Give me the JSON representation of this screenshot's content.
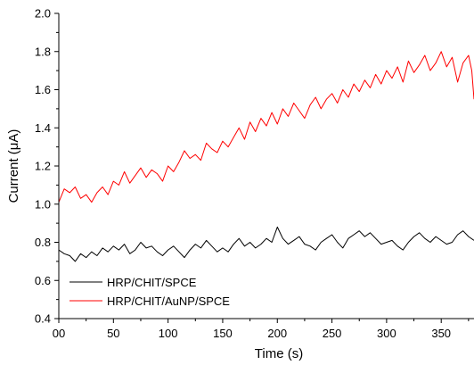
{
  "chart_data": {
    "type": "line",
    "title": "",
    "xlabel": "Time (s)",
    "ylabel": "Current (μA)",
    "xlim": [
      0,
      380
    ],
    "ylim": [
      0.4,
      2.0
    ],
    "x_ticks": [
      0,
      50,
      100,
      150,
      200,
      250,
      300,
      350
    ],
    "x_tick_labels": [
      "00",
      "50",
      "100",
      "150",
      "200",
      "250",
      "300",
      "350"
    ],
    "y_ticks": [
      0.4,
      0.6,
      0.8,
      1.0,
      1.2,
      1.4,
      1.6,
      1.8,
      2.0
    ],
    "y_tick_labels": [
      "0.4",
      "0.6",
      "0.8",
      "1.0",
      "1.2",
      "1.4",
      "1.6",
      "1.8",
      "2.0"
    ],
    "grid": false,
    "legend_position": "bottom-left",
    "series": [
      {
        "name": "HRP/CHIT/SPCE",
        "color": "#000000",
        "x": [
          0,
          5,
          10,
          15,
          20,
          25,
          30,
          35,
          40,
          45,
          50,
          55,
          60,
          65,
          70,
          75,
          80,
          85,
          90,
          95,
          100,
          105,
          110,
          115,
          120,
          125,
          130,
          135,
          140,
          145,
          150,
          155,
          160,
          165,
          170,
          175,
          180,
          185,
          190,
          195,
          200,
          205,
          210,
          215,
          220,
          225,
          230,
          235,
          240,
          245,
          250,
          255,
          260,
          265,
          270,
          275,
          280,
          285,
          290,
          295,
          300,
          305,
          310,
          315,
          320,
          325,
          330,
          335,
          340,
          345,
          350,
          355,
          360,
          365,
          370,
          375,
          380
        ],
        "values": [
          0.76,
          0.74,
          0.73,
          0.7,
          0.74,
          0.72,
          0.75,
          0.73,
          0.77,
          0.75,
          0.78,
          0.76,
          0.79,
          0.74,
          0.76,
          0.8,
          0.77,
          0.78,
          0.75,
          0.73,
          0.76,
          0.78,
          0.75,
          0.72,
          0.76,
          0.79,
          0.77,
          0.81,
          0.78,
          0.75,
          0.77,
          0.75,
          0.79,
          0.82,
          0.78,
          0.8,
          0.77,
          0.79,
          0.82,
          0.8,
          0.88,
          0.82,
          0.79,
          0.81,
          0.83,
          0.79,
          0.78,
          0.76,
          0.8,
          0.82,
          0.84,
          0.8,
          0.77,
          0.82,
          0.84,
          0.86,
          0.83,
          0.85,
          0.82,
          0.79,
          0.8,
          0.81,
          0.78,
          0.76,
          0.8,
          0.83,
          0.85,
          0.82,
          0.8,
          0.83,
          0.81,
          0.79,
          0.8,
          0.84,
          0.86,
          0.83,
          0.81
        ]
      },
      {
        "name": "HRP/CHIT/AuNP/SPCE",
        "color": "#ff0000",
        "x": [
          0,
          5,
          10,
          15,
          20,
          25,
          30,
          35,
          40,
          45,
          50,
          55,
          60,
          65,
          70,
          75,
          80,
          85,
          90,
          95,
          100,
          105,
          110,
          115,
          120,
          125,
          130,
          135,
          140,
          145,
          150,
          155,
          160,
          165,
          170,
          175,
          180,
          185,
          190,
          195,
          200,
          205,
          210,
          215,
          220,
          225,
          230,
          235,
          240,
          245,
          250,
          255,
          260,
          265,
          270,
          275,
          280,
          285,
          290,
          295,
          300,
          305,
          310,
          315,
          320,
          325,
          330,
          335,
          340,
          345,
          350,
          355,
          360,
          365,
          370,
          375,
          378,
          380
        ],
        "values": [
          1.01,
          1.08,
          1.06,
          1.09,
          1.03,
          1.05,
          1.01,
          1.06,
          1.09,
          1.05,
          1.12,
          1.1,
          1.17,
          1.11,
          1.15,
          1.19,
          1.14,
          1.18,
          1.16,
          1.12,
          1.2,
          1.17,
          1.22,
          1.28,
          1.24,
          1.26,
          1.23,
          1.32,
          1.29,
          1.27,
          1.33,
          1.3,
          1.35,
          1.4,
          1.34,
          1.43,
          1.38,
          1.45,
          1.41,
          1.48,
          1.42,
          1.5,
          1.46,
          1.53,
          1.49,
          1.45,
          1.52,
          1.56,
          1.5,
          1.55,
          1.58,
          1.53,
          1.6,
          1.56,
          1.63,
          1.59,
          1.65,
          1.61,
          1.68,
          1.63,
          1.7,
          1.66,
          1.72,
          1.64,
          1.75,
          1.69,
          1.73,
          1.78,
          1.7,
          1.74,
          1.8,
          1.72,
          1.77,
          1.64,
          1.74,
          1.78,
          1.7,
          1.55
        ]
      }
    ]
  }
}
